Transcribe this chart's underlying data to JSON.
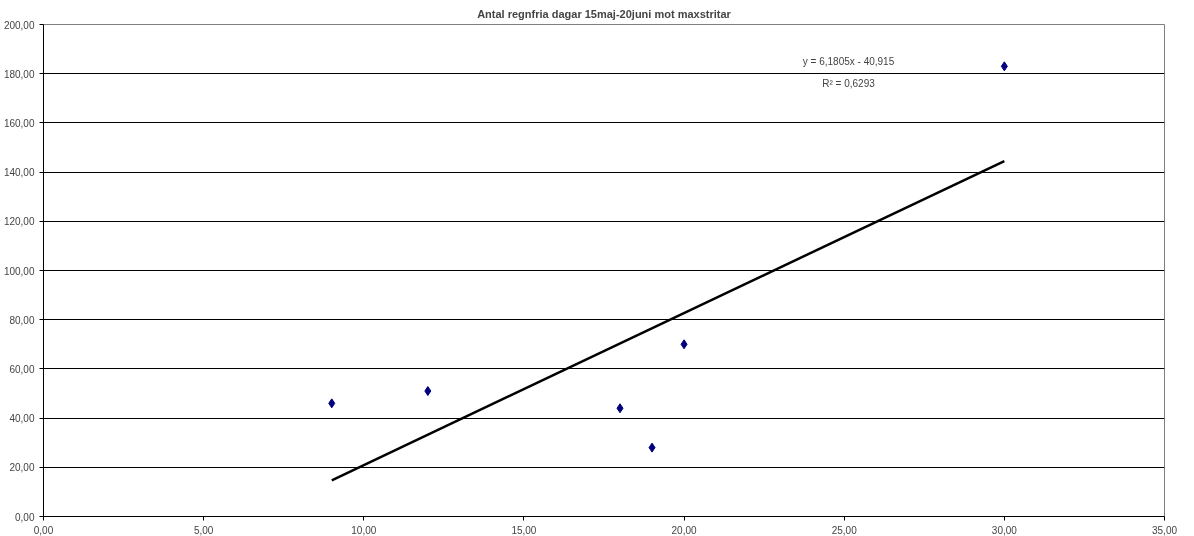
{
  "chart_data": {
    "type": "scatter",
    "title": "Antal regnfria dagar 15maj-20juni mot maxstritar",
    "series": [
      {
        "color": "#000080",
        "marker": "diamond",
        "x": [
          9,
          12,
          18,
          19,
          20,
          30
        ],
        "values": [
          46,
          51,
          44,
          28,
          70,
          183
        ]
      },
      {
        "type": "line",
        "color": "#000000",
        "line_style": "solid",
        "x": [
          9,
          30
        ],
        "values": [
          14.7,
          144.5
        ]
      }
    ],
    "annotations": [
      "y = 6,1805x - 40,915",
      "R² = 0,6293"
    ],
    "xlim": [
      0,
      35
    ],
    "xticks": [
      {
        "value": 0,
        "label": "0,00"
      },
      {
        "value": 5,
        "label": "5,00"
      },
      {
        "value": 10,
        "label": "10,00"
      },
      {
        "value": 15,
        "label": "15,00"
      },
      {
        "value": 20,
        "label": "20,00"
      },
      {
        "value": 25,
        "label": "25,00"
      },
      {
        "value": 30,
        "label": "30,00"
      },
      {
        "value": 35,
        "label": "35,00"
      }
    ],
    "ylim": [
      0,
      200
    ],
    "yticks": [
      {
        "value": 0,
        "label": "0,00"
      },
      {
        "value": 20,
        "label": "20,00"
      },
      {
        "value": 40,
        "label": "40,00"
      },
      {
        "value": 60,
        "label": "60,00"
      },
      {
        "value": 80,
        "label": "80,00"
      },
      {
        "value": 100,
        "label": "100,00"
      },
      {
        "value": 120,
        "label": "120,00"
      },
      {
        "value": 140,
        "label": "140,00"
      },
      {
        "value": 160,
        "label": "160,00"
      },
      {
        "value": 180,
        "label": "180,00"
      },
      {
        "value": 200,
        "label": "200,00"
      }
    ],
    "grid": "y"
  }
}
